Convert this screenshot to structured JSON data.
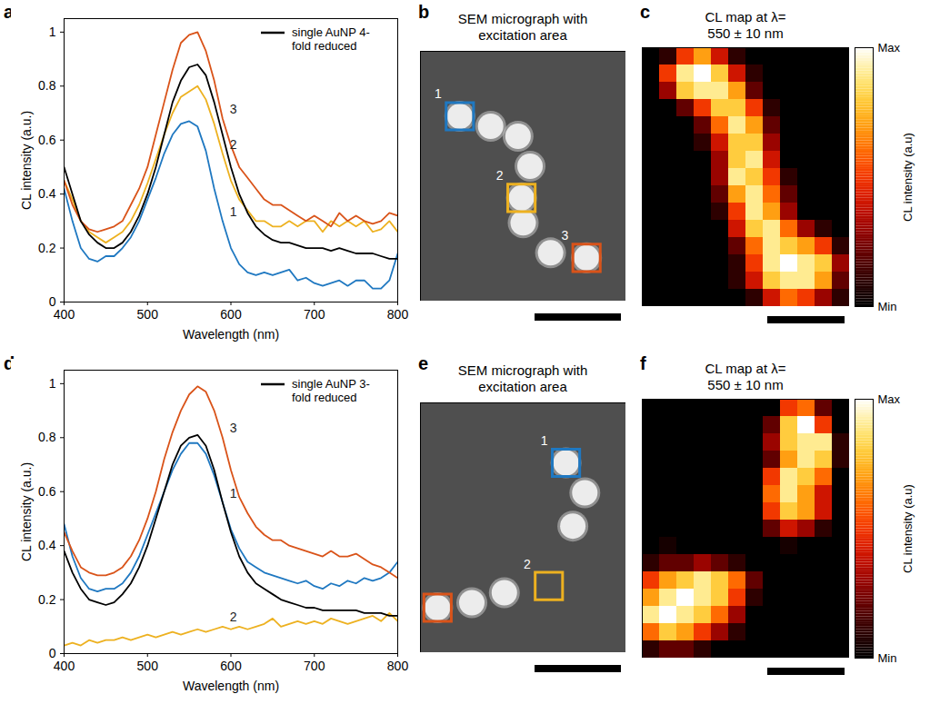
{
  "chart_data": [
    {
      "panel_label": "a",
      "type": "line",
      "xlabel": "Wavelength (nm)",
      "ylabel": "CL intensity (a.u.)",
      "xlim": [
        400,
        800
      ],
      "ylim": [
        0,
        1.05
      ],
      "xticks": [
        400,
        500,
        600,
        700,
        800
      ],
      "yticks": [
        0,
        0.2,
        0.4,
        0.6,
        0.8,
        1
      ],
      "legend": "top-right",
      "x": [
        400,
        410,
        420,
        430,
        440,
        450,
        460,
        470,
        480,
        490,
        500,
        510,
        520,
        530,
        540,
        550,
        560,
        570,
        580,
        590,
        600,
        610,
        620,
        630,
        640,
        650,
        660,
        670,
        680,
        690,
        700,
        710,
        720,
        730,
        740,
        750,
        760,
        770,
        780,
        790,
        800
      ],
      "series": [
        {
          "name": "1",
          "color": "#1f78c1",
          "values": [
            0.42,
            0.3,
            0.2,
            0.16,
            0.15,
            0.17,
            0.17,
            0.2,
            0.24,
            0.3,
            0.38,
            0.46,
            0.55,
            0.62,
            0.66,
            0.67,
            0.65,
            0.56,
            0.42,
            0.3,
            0.2,
            0.14,
            0.11,
            0.1,
            0.11,
            0.1,
            0.11,
            0.12,
            0.08,
            0.09,
            0.07,
            0.06,
            0.07,
            0.08,
            0.06,
            0.08,
            0.08,
            0.05,
            0.05,
            0.08,
            0.18
          ]
        },
        {
          "name": "2",
          "color": "#edb120",
          "values": [
            0.45,
            0.38,
            0.3,
            0.26,
            0.24,
            0.22,
            0.24,
            0.26,
            0.3,
            0.36,
            0.44,
            0.53,
            0.62,
            0.7,
            0.76,
            0.78,
            0.8,
            0.75,
            0.66,
            0.55,
            0.45,
            0.38,
            0.34,
            0.3,
            0.3,
            0.28,
            0.28,
            0.3,
            0.28,
            0.3,
            0.3,
            0.26,
            0.3,
            0.28,
            0.3,
            0.28,
            0.3,
            0.26,
            0.27,
            0.3,
            0.26
          ]
        },
        {
          "name": "3",
          "color": "#d95319",
          "values": [
            0.45,
            0.36,
            0.3,
            0.27,
            0.26,
            0.27,
            0.28,
            0.3,
            0.36,
            0.42,
            0.5,
            0.62,
            0.74,
            0.86,
            0.96,
            0.99,
            1.0,
            0.93,
            0.82,
            0.68,
            0.58,
            0.5,
            0.46,
            0.42,
            0.38,
            0.36,
            0.36,
            0.34,
            0.32,
            0.3,
            0.32,
            0.3,
            0.28,
            0.33,
            0.3,
            0.32,
            0.3,
            0.29,
            0.3,
            0.33,
            0.32
          ]
        },
        {
          "name": "single AuNP 4-fold reduced",
          "color": "#000000",
          "values": [
            0.5,
            0.4,
            0.3,
            0.25,
            0.22,
            0.2,
            0.2,
            0.22,
            0.26,
            0.32,
            0.4,
            0.5,
            0.62,
            0.74,
            0.82,
            0.87,
            0.88,
            0.84,
            0.74,
            0.62,
            0.5,
            0.4,
            0.33,
            0.28,
            0.25,
            0.23,
            0.22,
            0.22,
            0.21,
            0.2,
            0.2,
            0.2,
            0.19,
            0.2,
            0.19,
            0.18,
            0.18,
            0.18,
            0.17,
            0.16,
            0.16
          ]
        }
      ]
    },
    {
      "panel_label": "b",
      "type": "micrograph",
      "title": "SEM micrograph with excitation area",
      "tick_labels": false,
      "xlim": [
        0,
        12
      ],
      "ylim": [
        0,
        15
      ],
      "particles": {
        "x": [
          2.3,
          4.1,
          5.7,
          6.4,
          5.9,
          6.0,
          7.6,
          9.7
        ],
        "y": [
          3.9,
          4.5,
          5.1,
          6.9,
          8.8,
          10.3,
          12.1,
          12.4
        ]
      },
      "excitation_areas": [
        {
          "label": "1",
          "x": 2.3,
          "y": 3.9,
          "color": "#1f78c1"
        },
        {
          "label": "2",
          "x": 5.9,
          "y": 8.8,
          "color": "#edb120"
        },
        {
          "label": "3",
          "x": 9.7,
          "y": 12.4,
          "color": "#d95319"
        }
      ]
    },
    {
      "panel_label": "c",
      "type": "heatmap",
      "title": "CL map at λ= 550 ± 10 nm",
      "tick_labels": false,
      "cells": [
        [
          0,
          0.1,
          0.5,
          0.7,
          0.4,
          0.1,
          0,
          0,
          0,
          0,
          0,
          0
        ],
        [
          0,
          0.5,
          0.9,
          1.0,
          0.8,
          0.4,
          0.1,
          0,
          0,
          0,
          0,
          0
        ],
        [
          0,
          0.3,
          0.8,
          0.9,
          0.9,
          0.7,
          0.2,
          0,
          0,
          0,
          0,
          0
        ],
        [
          0,
          0,
          0.2,
          0.5,
          0.8,
          0.8,
          0.5,
          0.1,
          0,
          0,
          0,
          0
        ],
        [
          0,
          0,
          0,
          0.2,
          0.6,
          0.9,
          0.7,
          0.2,
          0,
          0,
          0,
          0
        ],
        [
          0,
          0,
          0,
          0.1,
          0.4,
          0.8,
          0.8,
          0.3,
          0,
          0,
          0,
          0
        ],
        [
          0,
          0,
          0,
          0,
          0.3,
          0.8,
          0.9,
          0.4,
          0,
          0,
          0,
          0
        ],
        [
          0,
          0,
          0,
          0,
          0.3,
          0.9,
          0.8,
          0.5,
          0.1,
          0,
          0,
          0
        ],
        [
          0,
          0,
          0,
          0,
          0.2,
          0.7,
          0.9,
          0.6,
          0.2,
          0,
          0,
          0
        ],
        [
          0,
          0,
          0,
          0,
          0.1,
          0.5,
          0.9,
          0.7,
          0.3,
          0,
          0,
          0
        ],
        [
          0,
          0,
          0,
          0,
          0,
          0.4,
          0.8,
          0.9,
          0.6,
          0.3,
          0.1,
          0
        ],
        [
          0,
          0,
          0,
          0,
          0,
          0.2,
          0.6,
          0.9,
          0.8,
          0.7,
          0.5,
          0.1
        ],
        [
          0,
          0,
          0,
          0,
          0,
          0.1,
          0.5,
          0.9,
          1.0,
          0.9,
          0.8,
          0.3
        ],
        [
          0,
          0,
          0,
          0,
          0,
          0.1,
          0.4,
          0.8,
          0.9,
          0.9,
          0.7,
          0.2
        ],
        [
          0,
          0,
          0,
          0,
          0,
          0,
          0.1,
          0.4,
          0.6,
          0.5,
          0.3,
          0.1
        ]
      ],
      "colorbar": {
        "label": "CL intensity (a.u)",
        "range": [
          0,
          1
        ],
        "ticks": [
          {
            "value": 0,
            "label": "Min"
          },
          {
            "value": 1,
            "label": "Max"
          }
        ]
      }
    },
    {
      "panel_label": "d",
      "type": "line",
      "xlabel": "Wavelength (nm)",
      "ylabel": "CL intensity (a.u.)",
      "xlim": [
        400,
        800
      ],
      "ylim": [
        0,
        1.05
      ],
      "xticks": [
        400,
        500,
        600,
        700,
        800
      ],
      "yticks": [
        0,
        0.2,
        0.4,
        0.6,
        0.8,
        1
      ],
      "legend": "top-right",
      "x": [
        400,
        410,
        420,
        430,
        440,
        450,
        460,
        470,
        480,
        490,
        500,
        510,
        520,
        530,
        540,
        550,
        560,
        570,
        580,
        590,
        600,
        610,
        620,
        630,
        640,
        650,
        660,
        670,
        680,
        690,
        700,
        710,
        720,
        730,
        740,
        750,
        760,
        770,
        780,
        790,
        800
      ],
      "series": [
        {
          "name": "1",
          "color": "#1f78c1",
          "values": [
            0.48,
            0.36,
            0.28,
            0.24,
            0.23,
            0.24,
            0.24,
            0.26,
            0.3,
            0.36,
            0.44,
            0.52,
            0.6,
            0.68,
            0.74,
            0.78,
            0.78,
            0.74,
            0.66,
            0.56,
            0.46,
            0.39,
            0.34,
            0.32,
            0.3,
            0.29,
            0.28,
            0.27,
            0.26,
            0.27,
            0.25,
            0.24,
            0.26,
            0.25,
            0.27,
            0.26,
            0.28,
            0.27,
            0.28,
            0.3,
            0.34
          ]
        },
        {
          "name": "2",
          "color": "#edb120",
          "values": [
            0.03,
            0.04,
            0.03,
            0.05,
            0.04,
            0.05,
            0.05,
            0.06,
            0.05,
            0.06,
            0.07,
            0.06,
            0.07,
            0.08,
            0.07,
            0.08,
            0.09,
            0.08,
            0.09,
            0.1,
            0.09,
            0.1,
            0.09,
            0.1,
            0.11,
            0.13,
            0.1,
            0.11,
            0.12,
            0.11,
            0.12,
            0.11,
            0.13,
            0.12,
            0.11,
            0.12,
            0.13,
            0.14,
            0.12,
            0.15,
            0.12
          ]
        },
        {
          "name": "3",
          "color": "#d95319",
          "values": [
            0.45,
            0.38,
            0.32,
            0.3,
            0.29,
            0.29,
            0.3,
            0.32,
            0.36,
            0.42,
            0.5,
            0.6,
            0.72,
            0.82,
            0.9,
            0.96,
            0.99,
            0.97,
            0.9,
            0.8,
            0.68,
            0.58,
            0.52,
            0.47,
            0.44,
            0.42,
            0.42,
            0.4,
            0.39,
            0.38,
            0.37,
            0.36,
            0.38,
            0.36,
            0.36,
            0.37,
            0.35,
            0.33,
            0.32,
            0.3,
            0.28
          ]
        },
        {
          "name": "single AuNP 3-fold reduced",
          "color": "#000000",
          "values": [
            0.38,
            0.3,
            0.24,
            0.2,
            0.19,
            0.18,
            0.19,
            0.22,
            0.26,
            0.32,
            0.4,
            0.5,
            0.6,
            0.7,
            0.77,
            0.8,
            0.81,
            0.77,
            0.68,
            0.56,
            0.45,
            0.36,
            0.3,
            0.26,
            0.24,
            0.22,
            0.2,
            0.19,
            0.18,
            0.17,
            0.17,
            0.16,
            0.16,
            0.16,
            0.16,
            0.16,
            0.15,
            0.15,
            0.15,
            0.14,
            0.14
          ]
        }
      ]
    },
    {
      "panel_label": "e",
      "type": "micrograph",
      "title": "SEM micrograph with excitation area",
      "tick_labels": false,
      "xlim": [
        0,
        12
      ],
      "ylim": [
        0,
        15
      ],
      "particles": {
        "x": [
          8.5,
          9.6,
          8.9,
          1.0,
          3.0,
          4.9
        ],
        "y": [
          3.6,
          5.4,
          7.4,
          12.3,
          12.0,
          11.4
        ]
      },
      "excitation_areas": [
        {
          "label": "1",
          "x": 8.5,
          "y": 3.6,
          "color": "#1f78c1"
        },
        {
          "label": "2",
          "x": 7.5,
          "y": 11.0,
          "color": "#edb120"
        },
        {
          "label": "3",
          "x": 1.0,
          "y": 12.3,
          "color": "#d95319"
        }
      ]
    },
    {
      "panel_label": "f",
      "type": "heatmap",
      "title": "CL map at λ= 550 ± 10 nm",
      "tick_labels": false,
      "cells": [
        [
          0,
          0,
          0,
          0,
          0,
          0,
          0,
          0,
          0.5,
          0.6,
          0.2,
          0
        ],
        [
          0,
          0,
          0,
          0,
          0,
          0,
          0,
          0.2,
          0.8,
          1.0,
          0.5,
          0
        ],
        [
          0,
          0,
          0,
          0,
          0,
          0,
          0,
          0.3,
          0.8,
          0.9,
          0.9,
          0.1
        ],
        [
          0,
          0,
          0,
          0,
          0,
          0,
          0,
          0.2,
          0.7,
          0.9,
          0.8,
          0.1
        ],
        [
          0,
          0,
          0,
          0,
          0,
          0,
          0,
          0.5,
          0.9,
          0.8,
          0.6,
          0
        ],
        [
          0,
          0,
          0,
          0,
          0,
          0,
          0,
          0.6,
          0.9,
          0.7,
          0.4,
          0
        ],
        [
          0,
          0,
          0,
          0,
          0,
          0,
          0,
          0.5,
          0.8,
          0.7,
          0.4,
          0
        ],
        [
          0,
          0,
          0,
          0,
          0,
          0,
          0,
          0.2,
          0.4,
          0.3,
          0.1,
          0
        ],
        [
          0,
          0.05,
          0,
          0,
          0,
          0,
          0,
          0,
          0.05,
          0,
          0,
          0
        ],
        [
          0.1,
          0.2,
          0.2,
          0.3,
          0.2,
          0.1,
          0,
          0,
          0,
          0,
          0,
          0
        ],
        [
          0.5,
          0.7,
          0.8,
          0.9,
          0.8,
          0.6,
          0.2,
          0,
          0,
          0,
          0,
          0
        ],
        [
          0.7,
          0.9,
          1.0,
          0.9,
          0.8,
          0.5,
          0.1,
          0,
          0,
          0,
          0,
          0
        ],
        [
          0.9,
          1.0,
          0.9,
          0.8,
          0.6,
          0.3,
          0,
          0,
          0,
          0,
          0,
          0
        ],
        [
          0.6,
          0.8,
          0.7,
          0.5,
          0.3,
          0.1,
          0,
          0,
          0,
          0,
          0,
          0
        ],
        [
          0.1,
          0.2,
          0.2,
          0.1,
          0,
          0,
          0,
          0,
          0,
          0,
          0,
          0
        ]
      ],
      "colorbar": {
        "label": "CL intensity (a.u)",
        "range": [
          0,
          1
        ],
        "ticks": [
          {
            "value": 0,
            "label": "Min"
          },
          {
            "value": 1,
            "label": "Max"
          }
        ]
      }
    }
  ]
}
